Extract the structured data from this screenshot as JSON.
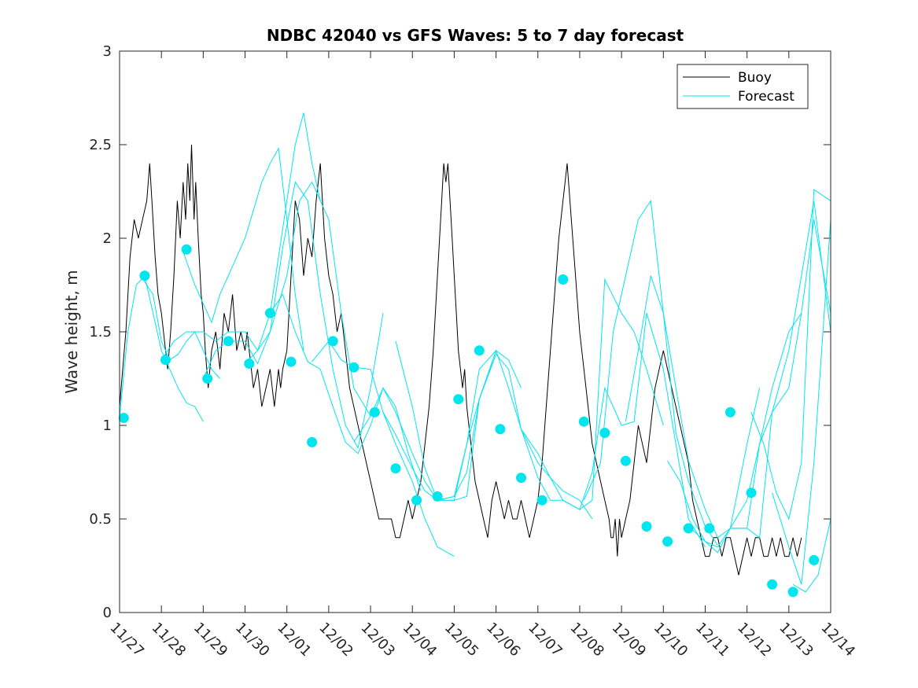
{
  "chart_data": {
    "type": "line",
    "title": "NDBC 42040 vs GFS Waves: 5 to 7 day forecast",
    "xlabel": "",
    "ylabel": "Wave height, m",
    "xlim": [
      0,
      17
    ],
    "ylim": [
      0,
      3
    ],
    "x_ticks": [
      0,
      1,
      2,
      3,
      4,
      5,
      6,
      7,
      8,
      9,
      10,
      11,
      12,
      13,
      14,
      15,
      16,
      17
    ],
    "x_tick_labels": [
      "11/27",
      "11/28",
      "11/29",
      "11/30",
      "12/01",
      "12/02",
      "12/03",
      "12/04",
      "12/05",
      "12/06",
      "12/07",
      "12/08",
      "12/09",
      "12/10",
      "12/11",
      "12/12",
      "12/13",
      "12/14"
    ],
    "y_ticks": [
      0,
      0.5,
      1,
      1.5,
      2,
      2.5,
      3
    ],
    "y_tick_labels": [
      "0",
      "0.5",
      "1",
      "1.5",
      "2",
      "2.5",
      "3"
    ],
    "legend": {
      "position": "top-right",
      "entries": [
        "Buoy",
        "Forecast"
      ]
    },
    "colors": {
      "buoy": "#000000",
      "forecast": "#00e5ee",
      "axis": "#262626"
    },
    "series": [
      {
        "name": "Buoy",
        "x": [
          0,
          0.15,
          0.25,
          0.35,
          0.45,
          0.55,
          0.65,
          0.72,
          0.8,
          0.85,
          0.92,
          1.0,
          1.05,
          1.1,
          1.15,
          1.22,
          1.3,
          1.38,
          1.45,
          1.52,
          1.58,
          1.63,
          1.68,
          1.72,
          1.78,
          1.82,
          1.88,
          1.95,
          2.0,
          2.05,
          2.12,
          2.2,
          2.3,
          2.4,
          2.5,
          2.6,
          2.7,
          2.8,
          2.9,
          3.0,
          3.05,
          3.1,
          3.15,
          3.2,
          3.3,
          3.4,
          3.5,
          3.6,
          3.7,
          3.75,
          3.8,
          3.85,
          3.9,
          4.0,
          4.1,
          4.2,
          4.3,
          4.4,
          4.5,
          4.6,
          4.7,
          4.8,
          4.9,
          5.0,
          5.1,
          5.2,
          5.3,
          5.4,
          5.5,
          5.6,
          5.7,
          5.8,
          5.9,
          6.0,
          6.1,
          6.2,
          6.3,
          6.4,
          6.5,
          6.6,
          6.7,
          6.8,
          6.9,
          7.0,
          7.1,
          7.2,
          7.3,
          7.4,
          7.5,
          7.6,
          7.7,
          7.75,
          7.8,
          7.85,
          7.9,
          7.95,
          8.0,
          8.05,
          8.1,
          8.15,
          8.2,
          8.25,
          8.3,
          8.35,
          8.4,
          8.45,
          8.5,
          8.6,
          8.7,
          8.8,
          8.9,
          9.0,
          9.1,
          9.2,
          9.3,
          9.4,
          9.5,
          9.6,
          9.7,
          9.8,
          9.9,
          10.0,
          10.1,
          10.2,
          10.3,
          10.4,
          10.5,
          10.6,
          10.7,
          10.8,
          10.9,
          11.0,
          11.1,
          11.2,
          11.3,
          11.4,
          11.5,
          11.6,
          11.7,
          11.75,
          11.8,
          11.85,
          11.9,
          11.95,
          12.0,
          12.1,
          12.2,
          12.3,
          12.4,
          12.5,
          12.6,
          12.7,
          12.8,
          12.9,
          13.0,
          13.1,
          13.2,
          13.3,
          13.4,
          13.5,
          13.6,
          13.7,
          13.8,
          13.9,
          14.0,
          14.1,
          14.2,
          14.3,
          14.4,
          14.5,
          14.6,
          14.7,
          14.8,
          14.9,
          15.0,
          15.1,
          15.2,
          15.3,
          15.4,
          15.5,
          15.6,
          15.7,
          15.8,
          15.9,
          16.0,
          16.1,
          16.2,
          16.3
        ],
        "y": [
          1.1,
          1.5,
          1.9,
          2.1,
          2.0,
          2.1,
          2.2,
          2.4,
          2.1,
          1.9,
          1.7,
          1.6,
          1.5,
          1.4,
          1.3,
          1.5,
          1.8,
          2.2,
          2.0,
          2.3,
          2.1,
          2.4,
          2.2,
          2.5,
          2.1,
          2.3,
          2.0,
          1.7,
          1.6,
          1.4,
          1.2,
          1.4,
          1.5,
          1.3,
          1.6,
          1.5,
          1.7,
          1.4,
          1.5,
          1.4,
          1.5,
          1.4,
          1.3,
          1.2,
          1.3,
          1.1,
          1.2,
          1.3,
          1.1,
          1.2,
          1.3,
          1.2,
          1.3,
          1.4,
          1.8,
          2.2,
          2.1,
          1.8,
          2.0,
          1.9,
          2.2,
          2.4,
          2.0,
          1.8,
          1.7,
          1.5,
          1.6,
          1.4,
          1.2,
          1.1,
          1.0,
          0.9,
          0.8,
          0.7,
          0.6,
          0.5,
          0.5,
          0.5,
          0.5,
          0.4,
          0.4,
          0.5,
          0.6,
          0.5,
          0.6,
          0.7,
          0.9,
          1.1,
          1.4,
          1.8,
          2.2,
          2.4,
          2.3,
          2.4,
          2.2,
          2.0,
          1.8,
          1.6,
          1.4,
          1.3,
          1.2,
          1.3,
          1.1,
          1.0,
          0.9,
          0.8,
          0.7,
          0.6,
          0.5,
          0.4,
          0.6,
          0.7,
          0.6,
          0.5,
          0.6,
          0.5,
          0.5,
          0.6,
          0.5,
          0.4,
          0.5,
          0.6,
          0.8,
          1.1,
          1.4,
          1.7,
          2.0,
          2.2,
          2.4,
          2.1,
          1.8,
          1.5,
          1.3,
          1.1,
          0.9,
          0.8,
          0.7,
          0.6,
          0.5,
          0.4,
          0.4,
          0.5,
          0.3,
          0.5,
          0.4,
          0.5,
          0.6,
          0.8,
          1.0,
          0.9,
          0.8,
          1.0,
          1.2,
          1.3,
          1.4,
          1.3,
          1.2,
          1.1,
          1.0,
          0.9,
          0.8,
          0.6,
          0.5,
          0.4,
          0.3,
          0.3,
          0.4,
          0.4,
          0.3,
          0.4,
          0.4,
          0.3,
          0.2,
          0.3,
          0.4,
          0.3,
          0.4,
          0.4,
          0.3,
          0.3,
          0.4,
          0.3,
          0.4,
          0.3,
          0.3,
          0.4,
          0.3,
          0.4
        ]
      },
      {
        "name": "Forecast",
        "lines": [
          {
            "x": [
              0,
              0.2,
              0.4,
              0.6,
              0.8,
              1.0,
              1.2,
              1.4,
              1.6,
              1.8,
              2.0
            ],
            "y": [
              1.04,
              1.5,
              1.75,
              1.8,
              1.6,
              1.4,
              1.3,
              1.2,
              1.12,
              1.1,
              1.02
            ]
          },
          {
            "x": [
              0.5,
              0.8,
              1.0,
              1.2,
              1.4,
              1.6,
              1.8,
              2.0,
              2.2,
              2.4
            ],
            "y": [
              1.8,
              1.7,
              1.45,
              1.35,
              1.38,
              1.45,
              1.5,
              1.4,
              1.3,
              1.25
            ]
          },
          {
            "x": [
              1.5,
              1.8,
              2.0,
              2.2,
              2.4,
              2.6,
              2.8,
              3.0,
              3.2,
              3.4,
              3.6,
              3.8,
              4.0,
              4.2,
              4.4
            ],
            "y": [
              1.94,
              1.75,
              1.65,
              1.55,
              1.7,
              1.8,
              1.9,
              2.0,
              2.15,
              2.3,
              2.4,
              2.48,
              2.1,
              1.7,
              1.4
            ]
          },
          {
            "x": [
              1.0,
              1.3,
              1.6,
              2.0,
              2.3,
              2.6,
              3.0,
              3.3,
              3.6,
              4.0,
              4.2,
              4.4,
              4.6,
              4.8
            ],
            "y": [
              1.35,
              1.45,
              1.5,
              1.5,
              1.45,
              1.5,
              1.5,
              1.4,
              1.6,
              2.2,
              2.5,
              2.67,
              2.4,
              2.2
            ]
          },
          {
            "x": [
              2.0,
              2.3,
              2.6,
              3.0,
              3.3,
              3.6,
              4.0,
              4.3,
              4.6,
              5.0,
              5.3,
              5.6,
              6.0
            ],
            "y": [
              1.25,
              1.4,
              1.45,
              1.45,
              1.33,
              1.5,
              1.8,
              2.2,
              2.3,
              2.1,
              1.6,
              1.2,
              1.05
            ]
          },
          {
            "x": [
              3.0,
              3.3,
              3.6,
              3.9,
              4.2,
              4.5,
              4.8,
              5.1,
              5.4,
              5.7,
              6.0,
              6.3
            ],
            "y": [
              1.33,
              1.4,
              1.5,
              1.95,
              2.3,
              2.2,
              1.7,
              1.3,
              1.0,
              0.88,
              1.2,
              1.6
            ]
          },
          {
            "x": [
              3.6,
              3.9,
              4.2,
              4.5,
              4.8,
              5.1,
              5.4,
              5.7,
              6.0,
              6.3,
              6.6,
              6.9,
              7.2
            ],
            "y": [
              1.6,
              1.7,
              1.5,
              1.34,
              1.3,
              1.1,
              0.91,
              0.85,
              1.0,
              1.2,
              1.1,
              0.85,
              0.65
            ]
          },
          {
            "x": [
              4.6,
              5.0,
              5.3,
              5.6,
              6.0,
              6.3,
              6.6,
              7.0,
              7.3,
              7.6,
              8.0
            ],
            "y": [
              1.34,
              1.45,
              1.35,
              1.31,
              1.3,
              1.07,
              0.9,
              0.7,
              0.5,
              0.35,
              0.3
            ]
          },
          {
            "x": [
              5.6,
              6.0,
              6.3,
              6.6,
              7.0,
              7.3,
              7.6,
              8.0,
              8.3,
              8.6,
              9.0
            ],
            "y": [
              0.91,
              1.05,
              1.2,
              1.07,
              0.85,
              0.7,
              0.6,
              0.6,
              0.9,
              1.3,
              1.4
            ]
          },
          {
            "x": [
              6.3,
              6.6,
              7.0,
              7.3,
              7.6,
              8.0,
              8.3,
              8.6,
              9.0,
              9.3,
              9.6
            ],
            "y": [
              1.07,
              0.95,
              0.77,
              0.65,
              0.6,
              0.62,
              0.9,
              1.14,
              1.4,
              1.35,
              1.2
            ]
          },
          {
            "x": [
              6.6,
              7.0,
              7.3,
              7.6,
              8.0,
              8.3,
              8.6,
              9.0,
              9.3,
              9.6,
              10.0,
              10.3,
              10.6
            ],
            "y": [
              1.45,
              1.1,
              0.77,
              0.6,
              0.6,
              0.62,
              1.14,
              1.38,
              1.3,
              0.98,
              0.72,
              0.6,
              0.6
            ]
          },
          {
            "x": [
              7.6,
              8.0,
              8.3,
              8.6,
              9.0,
              9.3,
              9.6,
              10.0,
              10.3,
              10.6,
              11.0,
              11.3
            ],
            "y": [
              0.6,
              0.62,
              0.75,
              1.14,
              1.4,
              1.2,
              0.98,
              0.8,
              0.72,
              0.65,
              0.6,
              0.5
            ]
          },
          {
            "x": [
              9.6,
              10.0,
              10.3,
              10.6,
              11.0,
              11.3,
              11.6,
              12.0,
              12.3,
              12.6,
              13.0
            ],
            "y": [
              0.98,
              0.85,
              0.72,
              0.6,
              0.55,
              0.6,
              1.78,
              1.6,
              1.5,
              1.3,
              1.0
            ]
          },
          {
            "x": [
              10.6,
              11.0,
              11.3,
              11.6,
              12.0,
              12.3,
              12.6,
              13.0,
              13.3,
              13.6,
              14.0
            ],
            "y": [
              0.6,
              0.55,
              0.75,
              1.2,
              1.0,
              1.02,
              1.6,
              1.3,
              0.9,
              0.5,
              0.35
            ]
          },
          {
            "x": [
              11.1,
              11.5,
              11.8,
              12.1,
              12.4,
              12.7,
              13.0,
              13.3,
              13.6,
              14.0,
              14.3
            ],
            "y": [
              0.6,
              0.8,
              1.5,
              1.8,
              2.1,
              2.2,
              1.6,
              0.96,
              0.7,
              0.46,
              0.36
            ]
          },
          {
            "x": [
              12.1,
              12.4,
              12.7,
              13.0,
              13.3,
              13.6,
              14.0,
              14.3,
              14.6,
              15.0,
              15.3
            ],
            "y": [
              1.02,
              1.4,
              1.8,
              1.6,
              1.2,
              0.81,
              0.55,
              0.4,
              0.45,
              0.9,
              1.2
            ]
          },
          {
            "x": [
              13.1,
              13.4,
              13.7,
              14.0,
              14.3,
              14.6,
              15.0,
              15.3,
              15.6,
              16.0,
              16.3
            ],
            "y": [
              0.81,
              0.7,
              0.5,
              0.38,
              0.35,
              0.45,
              0.45,
              0.9,
              1.2,
              1.5,
              1.6
            ]
          },
          {
            "x": [
              13.6,
              14.0,
              14.3,
              14.6,
              15.0,
              15.3,
              15.6,
              16.0,
              16.3,
              16.6,
              17.0
            ],
            "y": [
              0.46,
              0.38,
              0.32,
              0.45,
              0.45,
              0.4,
              1.07,
              1.2,
              1.6,
              2.1,
              1.6
            ]
          },
          {
            "x": [
              14.6,
              15.0,
              15.3,
              15.6,
              16.0,
              16.3,
              16.6,
              17.0
            ],
            "y": [
              0.45,
              0.6,
              0.9,
              1.07,
              1.4,
              1.8,
              2.2,
              1.5
            ]
          },
          {
            "x": [
              15.1,
              15.4,
              15.7,
              16.0,
              16.3,
              16.6,
              17.0
            ],
            "y": [
              1.07,
              0.9,
              0.64,
              0.5,
              0.8,
              2.26,
              2.2
            ]
          },
          {
            "x": [
              15.6,
              16.0,
              16.3,
              16.6,
              17.0
            ],
            "y": [
              0.64,
              0.35,
              0.15,
              0.8,
              2.1
            ]
          },
          {
            "x": [
              16.1,
              16.4,
              16.7,
              17.0
            ],
            "y": [
              0.15,
              0.11,
              0.2,
              0.5
            ]
          }
        ],
        "markers": {
          "x": [
            0.1,
            0.6,
            1.1,
            1.6,
            2.1,
            2.6,
            3.1,
            3.6,
            4.1,
            4.6,
            5.1,
            5.6,
            6.1,
            6.6,
            7.1,
            7.6,
            8.1,
            8.6,
            9.1,
            9.6,
            10.1,
            10.6,
            11.1,
            11.6,
            12.1,
            12.6,
            13.1,
            13.6,
            14.1,
            14.6,
            15.1,
            15.6,
            16.1,
            16.6
          ],
          "y": [
            1.04,
            1.8,
            1.35,
            1.94,
            1.25,
            1.45,
            1.33,
            1.6,
            1.34,
            0.91,
            1.45,
            1.31,
            1.07,
            0.77,
            0.6,
            0.62,
            1.14,
            1.4,
            0.98,
            0.72,
            0.6,
            1.78,
            1.02,
            0.96,
            0.81,
            0.46,
            0.38,
            0.45,
            0.45,
            1.07,
            0.64,
            0.15,
            0.11,
            0.28
          ]
        }
      }
    ]
  }
}
